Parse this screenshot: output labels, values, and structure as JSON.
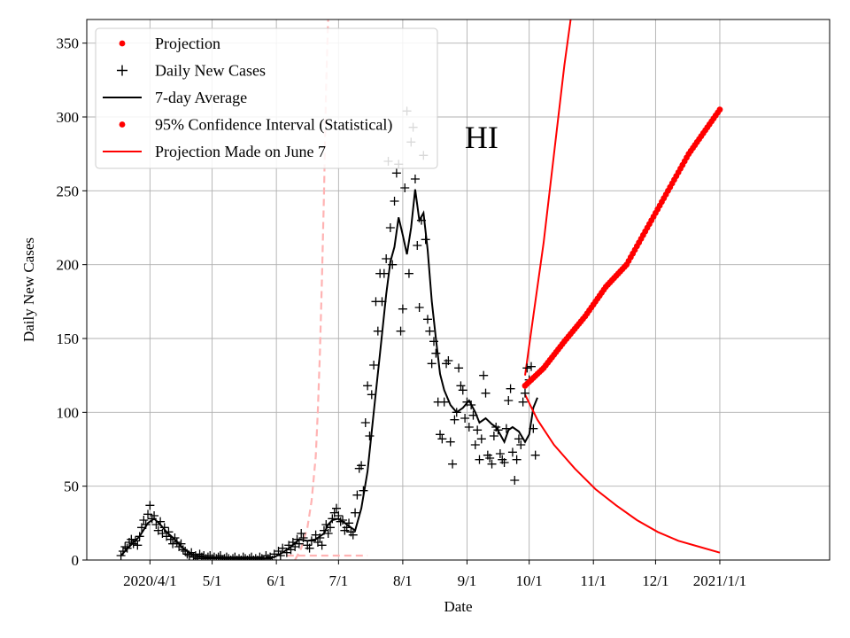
{
  "chart_data": {
    "type": "line",
    "title": "",
    "annotation": "HI",
    "xlabel": "Date",
    "ylabel": "Daily New Cases",
    "ylim": [
      0,
      366
    ],
    "xlim_days": [
      -30.5,
      328
    ],
    "x_origin": "2020-04-01",
    "x_ticks": [
      {
        "day": 0,
        "label": "2020/4/1"
      },
      {
        "day": 30,
        "label": "5/1"
      },
      {
        "day": 61,
        "label": "6/1"
      },
      {
        "day": 91,
        "label": "7/1"
      },
      {
        "day": 122,
        "label": "8/1"
      },
      {
        "day": 153,
        "label": "9/1"
      },
      {
        "day": 183,
        "label": "10/1"
      },
      {
        "day": 214,
        "label": "11/1"
      },
      {
        "day": 244,
        "label": "12/1"
      },
      {
        "day": 275,
        "label": "2021/1/1"
      }
    ],
    "y_ticks": [
      0,
      50,
      100,
      150,
      200,
      250,
      300,
      350
    ],
    "legend": {
      "placement": "top-left",
      "entries": [
        {
          "label": "Projection",
          "marker": "dot",
          "color": "#ff0000"
        },
        {
          "label": "Daily New Cases",
          "marker": "plus",
          "color": "#000000"
        },
        {
          "label": "7-day Average",
          "marker": "line",
          "color": "#000000"
        },
        {
          "label": "95% Confidence Interval (Statistical)",
          "marker": "dot",
          "color": "#ff0000"
        },
        {
          "label": "Projection Made on June 7",
          "marker": "line",
          "color": "#ff0000"
        }
      ]
    },
    "series": [
      {
        "name": "Daily New Cases",
        "style": "plus",
        "color": "#000000",
        "points": [
          [
            -14,
            3
          ],
          [
            -13,
            6
          ],
          [
            -12,
            9
          ],
          [
            -11,
            8
          ],
          [
            -10,
            12
          ],
          [
            -9,
            14
          ],
          [
            -8,
            11
          ],
          [
            -7,
            13
          ],
          [
            -6,
            10
          ],
          [
            -5,
            16
          ],
          [
            -4,
            22
          ],
          [
            -3,
            27
          ],
          [
            -2,
            24
          ],
          [
            -1,
            31
          ],
          [
            0,
            37
          ],
          [
            1,
            28
          ],
          [
            2,
            30
          ],
          [
            3,
            24
          ],
          [
            4,
            20
          ],
          [
            5,
            26
          ],
          [
            6,
            18
          ],
          [
            7,
            22
          ],
          [
            8,
            16
          ],
          [
            9,
            19
          ],
          [
            10,
            14
          ],
          [
            11,
            11
          ],
          [
            12,
            15
          ],
          [
            13,
            12
          ],
          [
            14,
            9
          ],
          [
            15,
            11
          ],
          [
            16,
            7
          ],
          [
            17,
            6
          ],
          [
            18,
            4
          ],
          [
            19,
            3
          ],
          [
            20,
            5
          ],
          [
            21,
            2
          ],
          [
            22,
            3
          ],
          [
            23,
            1
          ],
          [
            24,
            4
          ],
          [
            25,
            2
          ],
          [
            26,
            3
          ],
          [
            27,
            1
          ],
          [
            28,
            2
          ],
          [
            29,
            3
          ],
          [
            30,
            1
          ],
          [
            31,
            2
          ],
          [
            32,
            1
          ],
          [
            33,
            2
          ],
          [
            34,
            3
          ],
          [
            35,
            0
          ],
          [
            36,
            1
          ],
          [
            37,
            2
          ],
          [
            38,
            1
          ],
          [
            39,
            0
          ],
          [
            40,
            1
          ],
          [
            41,
            2
          ],
          [
            42,
            0
          ],
          [
            43,
            1
          ],
          [
            44,
            0
          ],
          [
            45,
            2
          ],
          [
            46,
            1
          ],
          [
            47,
            0
          ],
          [
            48,
            1
          ],
          [
            49,
            2
          ],
          [
            50,
            0
          ],
          [
            51,
            1
          ],
          [
            52,
            0
          ],
          [
            53,
            2
          ],
          [
            54,
            1
          ],
          [
            55,
            0
          ],
          [
            56,
            3
          ],
          [
            57,
            1
          ],
          [
            58,
            2
          ],
          [
            59,
            0
          ],
          [
            60,
            4
          ],
          [
            62,
            6
          ],
          [
            63,
            3
          ],
          [
            64,
            8
          ],
          [
            66,
            5
          ],
          [
            67,
            10
          ],
          [
            68,
            7
          ],
          [
            69,
            12
          ],
          [
            70,
            9
          ],
          [
            71,
            14
          ],
          [
            72,
            11
          ],
          [
            73,
            18
          ],
          [
            74,
            15
          ],
          [
            76,
            10
          ],
          [
            77,
            8
          ],
          [
            78,
            13
          ],
          [
            80,
            17
          ],
          [
            81,
            12
          ],
          [
            82,
            15
          ],
          [
            83,
            10
          ],
          [
            84,
            20
          ],
          [
            85,
            24
          ],
          [
            86,
            18
          ],
          [
            87,
            22
          ],
          [
            88,
            28
          ],
          [
            89,
            32
          ],
          [
            90,
            35
          ],
          [
            91,
            30
          ],
          [
            92,
            26
          ],
          [
            93,
            27
          ],
          [
            94,
            20
          ],
          [
            95,
            22
          ],
          [
            96,
            25
          ],
          [
            97,
            19
          ],
          [
            98,
            17
          ],
          [
            99,
            32
          ],
          [
            100,
            44
          ],
          [
            101,
            62
          ],
          [
            102,
            64
          ],
          [
            103,
            47
          ],
          [
            104,
            93
          ],
          [
            105,
            118
          ],
          [
            106,
            84
          ],
          [
            107,
            112
          ],
          [
            108,
            132
          ],
          [
            109,
            175
          ],
          [
            110,
            155
          ],
          [
            111,
            194
          ],
          [
            112,
            175
          ],
          [
            113,
            194
          ],
          [
            114,
            204
          ],
          [
            115,
            270
          ],
          [
            116,
            225
          ],
          [
            117,
            200
          ],
          [
            118,
            243
          ],
          [
            119,
            262
          ],
          [
            120,
            268
          ],
          [
            121,
            155
          ],
          [
            122,
            170
          ],
          [
            123,
            252
          ],
          [
            124,
            304
          ],
          [
            125,
            194
          ],
          [
            126,
            283
          ],
          [
            127,
            293
          ],
          [
            128,
            258
          ],
          [
            129,
            213
          ],
          [
            130,
            171
          ],
          [
            131,
            230
          ],
          [
            132,
            274
          ],
          [
            133,
            217
          ],
          [
            134,
            163
          ],
          [
            135,
            155
          ],
          [
            136,
            133
          ],
          [
            137,
            148
          ],
          [
            138,
            140
          ],
          [
            139,
            107
          ],
          [
            140,
            85
          ],
          [
            141,
            82
          ],
          [
            142,
            107
          ],
          [
            143,
            133
          ],
          [
            144,
            135
          ],
          [
            145,
            80
          ],
          [
            146,
            65
          ],
          [
            147,
            95
          ],
          [
            148,
            100
          ],
          [
            149,
            130
          ],
          [
            150,
            118
          ],
          [
            151,
            115
          ],
          [
            152,
            96
          ],
          [
            153,
            107
          ],
          [
            154,
            90
          ],
          [
            155,
            105
          ],
          [
            156,
            98
          ],
          [
            157,
            78
          ],
          [
            158,
            88
          ],
          [
            159,
            68
          ],
          [
            160,
            82
          ],
          [
            161,
            125
          ],
          [
            162,
            113
          ],
          [
            163,
            71
          ],
          [
            164,
            69
          ],
          [
            165,
            65
          ],
          [
            166,
            84
          ],
          [
            167,
            90
          ],
          [
            168,
            88
          ],
          [
            169,
            72
          ],
          [
            170,
            68
          ],
          [
            171,
            66
          ],
          [
            172,
            89
          ],
          [
            173,
            108
          ],
          [
            174,
            116
          ],
          [
            175,
            73
          ],
          [
            176,
            54
          ],
          [
            177,
            68
          ],
          [
            178,
            82
          ],
          [
            179,
            78
          ],
          [
            180,
            107
          ],
          [
            181,
            113
          ],
          [
            182,
            130
          ],
          [
            183,
            122
          ],
          [
            184,
            131
          ],
          [
            185,
            89
          ],
          [
            186,
            71
          ]
        ]
      },
      {
        "name": "7-day Average",
        "style": "line",
        "color": "#000000",
        "points": [
          [
            -14,
            3
          ],
          [
            -10,
            9
          ],
          [
            -5,
            16
          ],
          [
            -1,
            25
          ],
          [
            2,
            28
          ],
          [
            5,
            24
          ],
          [
            8,
            19
          ],
          [
            12,
            14
          ],
          [
            16,
            8
          ],
          [
            20,
            4
          ],
          [
            26,
            2
          ],
          [
            35,
            1
          ],
          [
            45,
            1
          ],
          [
            55,
            1
          ],
          [
            60,
            2
          ],
          [
            64,
            5
          ],
          [
            68,
            9
          ],
          [
            72,
            14
          ],
          [
            76,
            13
          ],
          [
            80,
            14
          ],
          [
            84,
            18
          ],
          [
            86,
            24
          ],
          [
            88,
            27
          ],
          [
            91,
            28
          ],
          [
            94,
            25
          ],
          [
            97,
            22
          ],
          [
            99,
            20
          ],
          [
            102,
            35
          ],
          [
            105,
            60
          ],
          [
            108,
            100
          ],
          [
            111,
            140
          ],
          [
            114,
            180
          ],
          [
            116,
            202
          ],
          [
            118,
            212
          ],
          [
            120,
            232
          ],
          [
            122,
            220
          ],
          [
            124,
            207
          ],
          [
            126,
            225
          ],
          [
            128,
            251
          ],
          [
            130,
            230
          ],
          [
            132,
            235
          ],
          [
            134,
            210
          ],
          [
            136,
            175
          ],
          [
            138,
            150
          ],
          [
            140,
            126
          ],
          [
            142,
            115
          ],
          [
            145,
            105
          ],
          [
            148,
            100
          ],
          [
            151,
            103
          ],
          [
            154,
            108
          ],
          [
            157,
            100
          ],
          [
            159,
            93
          ],
          [
            162,
            96
          ],
          [
            165,
            92
          ],
          [
            167,
            90
          ],
          [
            169,
            85
          ],
          [
            171,
            80
          ],
          [
            173,
            88
          ],
          [
            175,
            90
          ],
          [
            178,
            87
          ],
          [
            181,
            80
          ],
          [
            183,
            85
          ],
          [
            185,
            103
          ],
          [
            187,
            110
          ]
        ]
      },
      {
        "name": "Projection",
        "style": "dots",
        "color": "#ff0000",
        "points": [
          [
            181,
            118
          ],
          [
            190,
            130
          ],
          [
            200,
            148
          ],
          [
            210,
            165
          ],
          [
            220,
            185
          ],
          [
            230,
            200
          ],
          [
            240,
            225
          ],
          [
            250,
            250
          ],
          [
            260,
            275
          ],
          [
            270,
            295
          ],
          [
            275,
            305
          ]
        ]
      },
      {
        "name": "95% Confidence Interval (Statistical) upper",
        "style": "line",
        "color": "#ff0000",
        "points": [
          [
            181,
            125
          ],
          [
            185,
            165
          ],
          [
            190,
            215
          ],
          [
            195,
            275
          ],
          [
            200,
            335
          ],
          [
            203,
            366
          ]
        ]
      },
      {
        "name": "95% Confidence Interval (Statistical) lower",
        "style": "line",
        "color": "#ff0000",
        "points": [
          [
            181,
            112
          ],
          [
            187,
            95
          ],
          [
            195,
            78
          ],
          [
            205,
            62
          ],
          [
            215,
            48
          ],
          [
            225,
            37
          ],
          [
            235,
            27
          ],
          [
            245,
            19
          ],
          [
            255,
            13
          ],
          [
            265,
            9
          ],
          [
            275,
            5
          ]
        ]
      },
      {
        "name": "Projection Made on June 7",
        "style": "dashed",
        "color": "#ffb3b3",
        "points": [
          [
            70,
            0
          ],
          [
            73,
            8
          ],
          [
            76,
            22
          ],
          [
            78,
            40
          ],
          [
            80,
            70
          ],
          [
            81,
            100
          ],
          [
            82,
            140
          ],
          [
            83,
            190
          ],
          [
            84,
            250
          ],
          [
            85,
            320
          ],
          [
            86,
            366
          ]
        ]
      },
      {
        "name": "Projection Made on June 7 (lower bound)",
        "style": "dashed",
        "color": "#ffb3b3",
        "points": [
          [
            66,
            3
          ],
          [
            105,
            3
          ]
        ]
      }
    ]
  }
}
